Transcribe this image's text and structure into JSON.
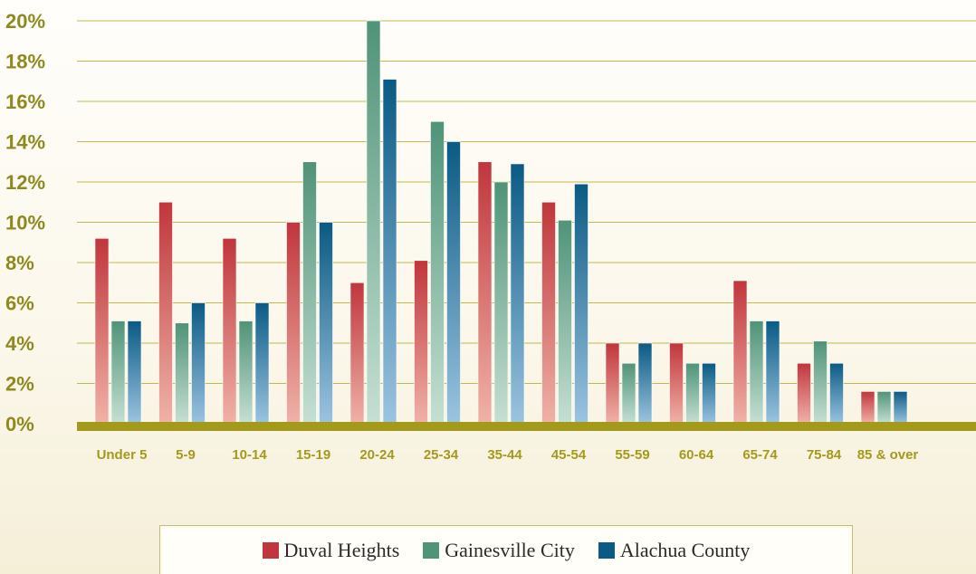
{
  "chart_data": {
    "type": "bar",
    "categories": [
      "Under 5",
      "5-9",
      "10-14",
      "15-19",
      "20-24",
      "25-34",
      "35-44",
      "45-54",
      "55-59",
      "60-64",
      "65-74",
      "75-84",
      "85 & over"
    ],
    "series": [
      {
        "name": "Duval Heights",
        "color": "#c0363c",
        "values": [
          9.2,
          11,
          9.2,
          10,
          7,
          8.1,
          13,
          11,
          4,
          4,
          7.1,
          3,
          1.6
        ]
      },
      {
        "name": "Gainesville City",
        "color": "#4f9378",
        "values": [
          5.1,
          5,
          5.1,
          13,
          20,
          15,
          12,
          10.1,
          3,
          3,
          5.1,
          4.1,
          1.6
        ]
      },
      {
        "name": "Alachua County",
        "color": "#0a5a84",
        "values": [
          5.1,
          6,
          6,
          10,
          17.1,
          14,
          12.9,
          11.9,
          4,
          3,
          5.1,
          3,
          1.6
        ]
      }
    ],
    "yticks": [
      "0%",
      "2%",
      "4%",
      "6%",
      "8%",
      "10%",
      "12%",
      "14%",
      "16%",
      "18%",
      "20%"
    ],
    "ylim": [
      0,
      20
    ],
    "grid": true,
    "legend_position": "bottom",
    "title": "",
    "xlabel": "",
    "ylabel": ""
  }
}
